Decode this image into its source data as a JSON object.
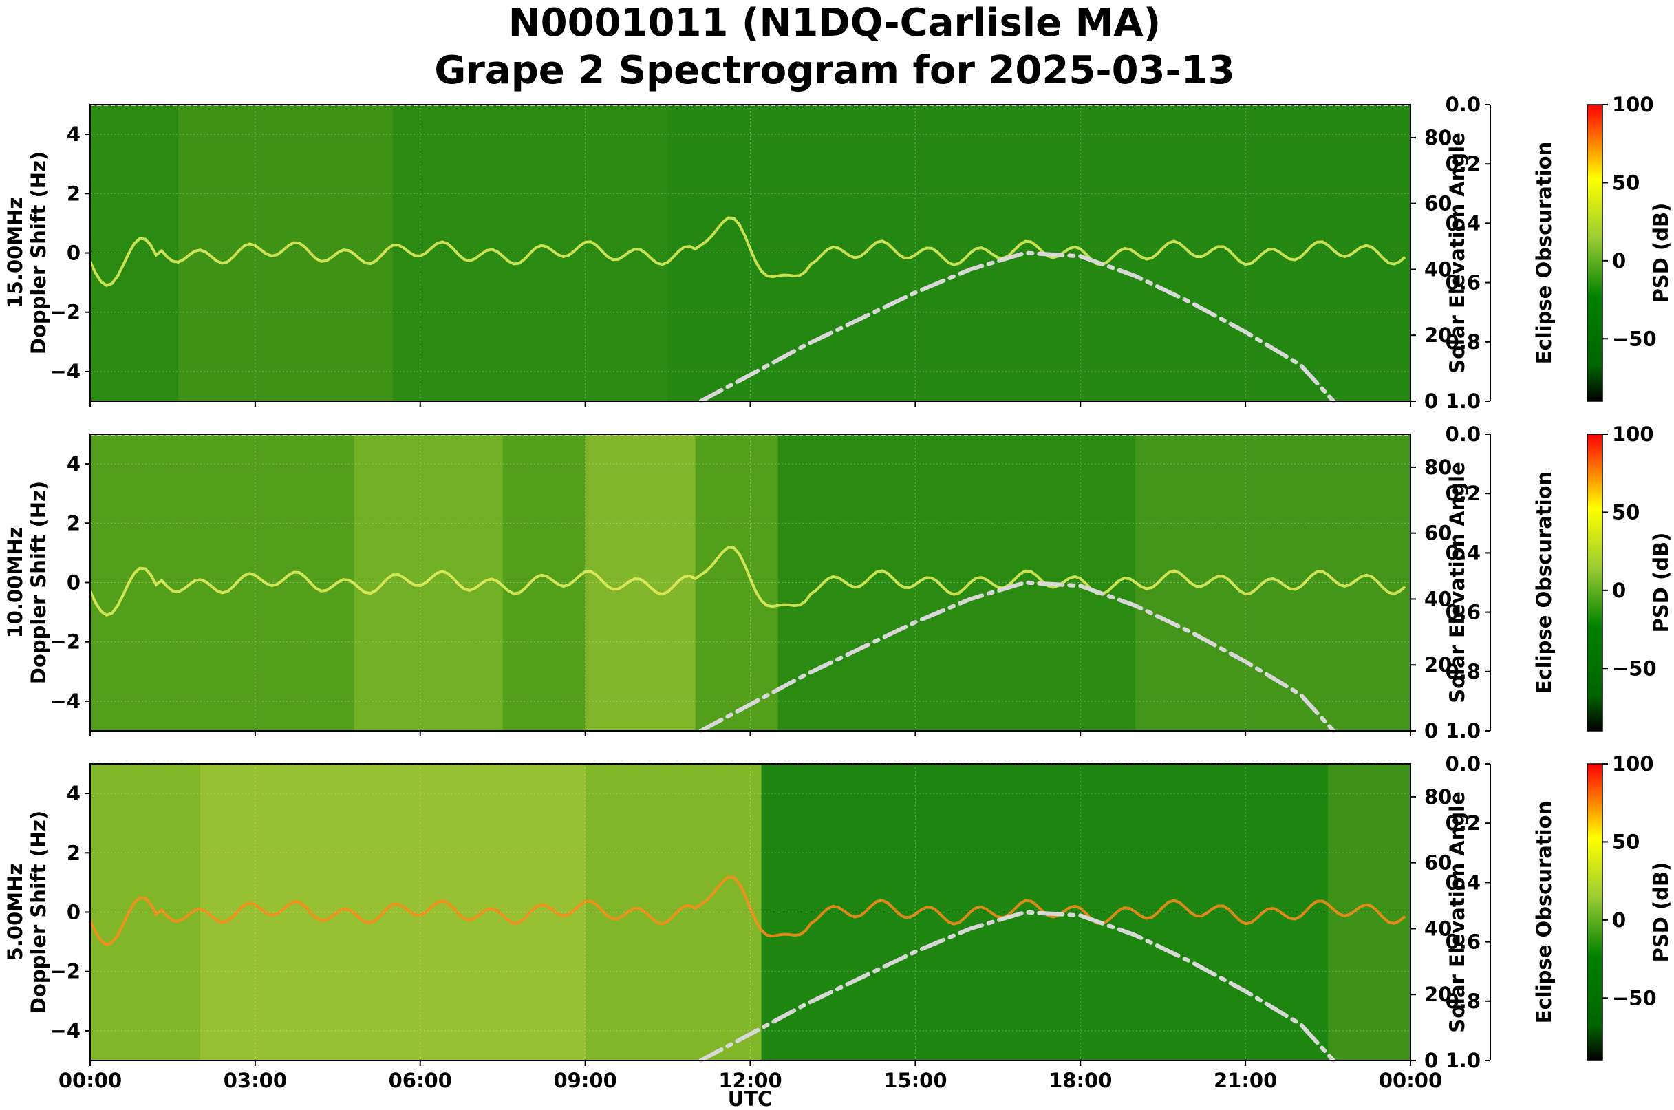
{
  "title_line1": "N0001011 (N1DQ-Carlisle MA)",
  "title_line2": "Grape 2 Spectrogram for 2025-03-13",
  "chart_data": {
    "type": "heatmap",
    "title": "N0001011 (N1DQ-Carlisle MA) Grape 2 Spectrogram for 2025-03-13",
    "xlabel": "UTC",
    "x_ticks": [
      "00:00",
      "03:00",
      "06:00",
      "09:00",
      "12:00",
      "15:00",
      "18:00",
      "21:00",
      "00:00"
    ],
    "xlim_hours": [
      0,
      24
    ],
    "ylabel": "Doppler Shift (Hz)",
    "ylim": [
      -5,
      5
    ],
    "y_ticks": [
      "4",
      "2",
      "0",
      "−2",
      "−4"
    ],
    "right_ylabel": "Solar Elevation Angle",
    "right_ylim": [
      0,
      90
    ],
    "right_ticks": [
      "80",
      "60",
      "40",
      "20",
      "0"
    ],
    "eclipse_label": "Eclipse Obscuration",
    "eclipse_ticks": [
      "0.0",
      "0.2",
      "0.4",
      "0.6",
      "0.8",
      "1.0"
    ],
    "colorbar_label": "PSD (dB)",
    "colorbar_range": [
      -90,
      100
    ],
    "colorbar_ticks": [
      "100",
      "50",
      "0",
      "−50"
    ],
    "colormap": [
      "#000000",
      "#006400",
      "#008000",
      "#9acd32",
      "#ffff00",
      "#ff0000"
    ],
    "grid": true,
    "solar_elevation": {
      "hours": [
        11.1,
        12,
        13,
        14,
        15,
        16,
        17,
        18,
        19,
        20,
        21,
        22,
        22.6
      ],
      "degrees": [
        0,
        8,
        17,
        25,
        33,
        40,
        45,
        44,
        38,
        30,
        21,
        11,
        0
      ],
      "peak_hour": 16.9,
      "peak_degrees": 45,
      "line_color": "#d8d8d8"
    },
    "panels": [
      {
        "label": "15.00MHz",
        "ylabel": "15.00MHz\nDoppler Shift (Hz)"
      },
      {
        "label": "10.00MHz",
        "ylabel": "10.00MHz\nDoppler Shift (Hz)"
      },
      {
        "label": "5.00MHz",
        "ylabel": "5.00MHz\nDoppler Shift (Hz)"
      }
    ]
  }
}
